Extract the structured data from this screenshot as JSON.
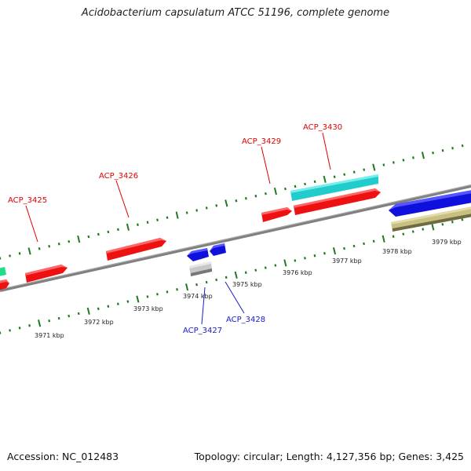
{
  "title": "Acidobacterium capsulatum ATCC 51196, complete genome",
  "footer": {
    "accession": "Accession: NC_012483",
    "summary": "Topology: circular; Length: 4,127,356 bp; Genes: 3,425"
  },
  "colors": {
    "backbone": "#808080",
    "tick": "#1f7a1f",
    "forward_label": "#e00000",
    "reverse_label": "#1a1acc",
    "red_gene": "#ee1111",
    "blue_gene": "#1010dd",
    "cyan_gene": "#22cccc",
    "khaki_gene": "#c8c080",
    "grey_gene": "#c8c8c8",
    "green_gene": "#22dd88"
  },
  "scale_labels": [
    "3971 kbp",
    "3972 kbp",
    "3973 kbp",
    "3974 kbp",
    "3975 kbp",
    "3976 kbp",
    "3977 kbp",
    "3978 kbp",
    "3979 kbp"
  ],
  "gene_labels": [
    {
      "text": "ACP_3425",
      "strand": "forward"
    },
    {
      "text": "ACP_3426",
      "strand": "forward"
    },
    {
      "text": "ACP_3429",
      "strand": "forward"
    },
    {
      "text": "ACP_3430",
      "strand": "forward"
    },
    {
      "text": "ACP_3427",
      "strand": "reverse"
    },
    {
      "text": "ACP_3428",
      "strand": "reverse"
    }
  ]
}
